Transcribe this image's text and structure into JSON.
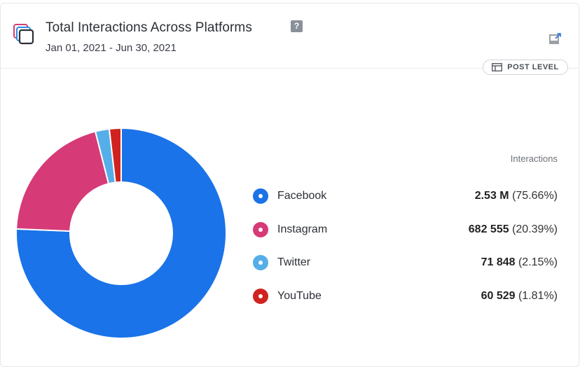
{
  "header": {
    "title": "Total Interactions Across Platforms",
    "help_label": "?",
    "date_range": "Jan 01, 2021 - Jun 30, 2021",
    "post_level_label": "POST LEVEL",
    "icons": {
      "app": "stacked-squares-icon",
      "help": "help-icon",
      "export": "export-icon",
      "post_level": "table-icon"
    }
  },
  "legend": {
    "header": "Interactions",
    "items": [
      {
        "label": "Facebook",
        "value": "2.53 M",
        "percent": "(75.66%)",
        "color": "#1a73e8"
      },
      {
        "label": "Instagram",
        "value": "682 555",
        "percent": "(20.39%)",
        "color": "#d63a77"
      },
      {
        "label": "Twitter",
        "value": "71 848",
        "percent": "(2.15%)",
        "color": "#55aee8"
      },
      {
        "label": "YouTube",
        "value": "60 529",
        "percent": "(1.81%)",
        "color": "#d0231f"
      }
    ]
  },
  "chart_data": {
    "type": "pie",
    "variant": "donut",
    "title": "Total Interactions Across Platforms",
    "subtitle": "Jan 01, 2021 - Jun 30, 2021",
    "legend_title": "Interactions",
    "legend_position": "right",
    "categories": [
      "Facebook",
      "Instagram",
      "Twitter",
      "YouTube"
    ],
    "values": [
      2530000,
      682555,
      71848,
      60529
    ],
    "percentages": [
      75.66,
      20.39,
      2.15,
      1.81
    ],
    "colors": [
      "#1a73e8",
      "#d63a77",
      "#55aee8",
      "#d0231f"
    ]
  }
}
